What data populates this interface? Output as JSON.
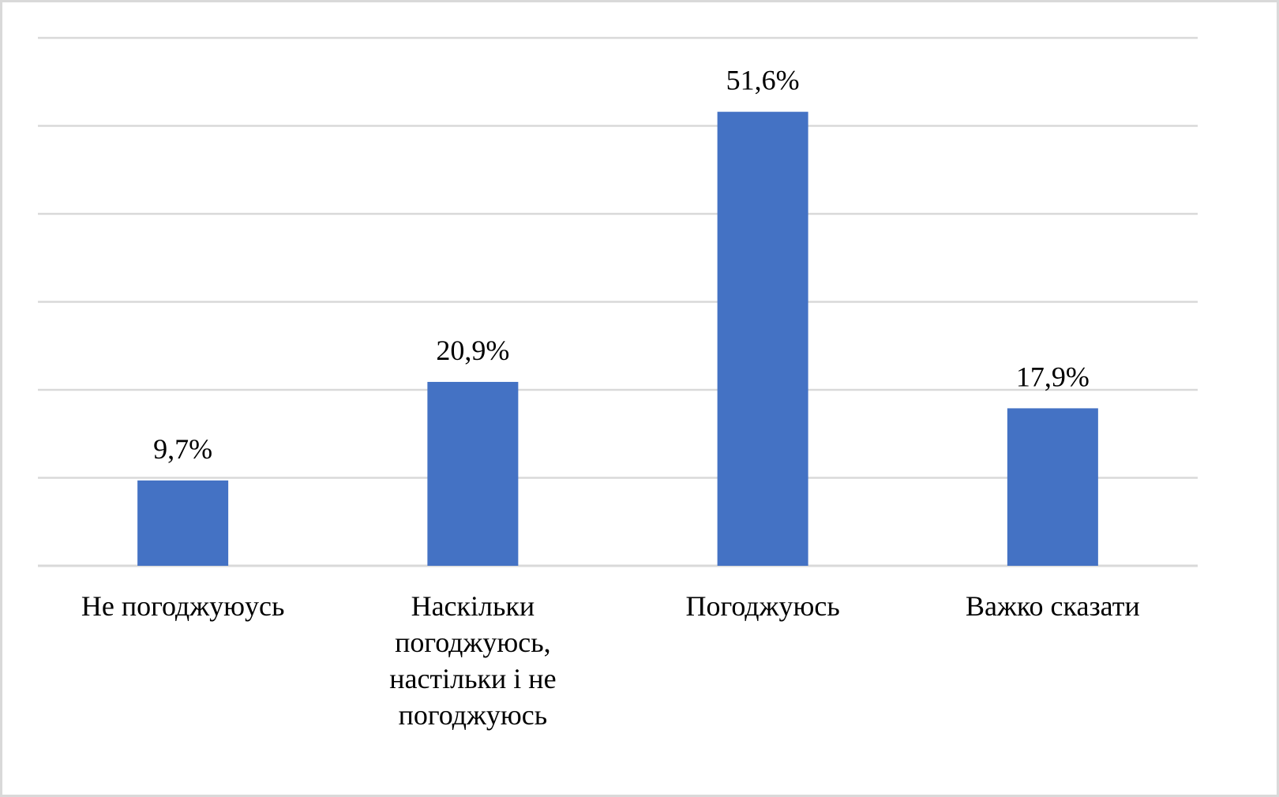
{
  "chart_data": {
    "type": "bar",
    "title": "",
    "xlabel": "",
    "ylabel": "",
    "categories": [
      "Не погоджуюусь",
      "Наскільки погоджуюсь, настільки і не погоджуюсь",
      "Погоджуюсь",
      "Важко сказати"
    ],
    "category_lines": [
      [
        "Не погоджуюусь"
      ],
      [
        "Наскільки",
        "погоджуюсь,",
        "настільки і не",
        "погоджуюсь"
      ],
      [
        "Погоджуюсь"
      ],
      [
        "Важко сказати"
      ]
    ],
    "values": [
      9.7,
      20.9,
      51.6,
      17.9
    ],
    "data_labels": [
      "9,7%",
      "20,9%",
      "51,6%",
      "17,9%"
    ],
    "ylim": [
      0,
      60
    ],
    "y_gridlines": [
      0,
      10,
      20,
      30,
      40,
      50,
      60
    ],
    "y_tick_labels_shown": false,
    "grid": true,
    "legend": "none",
    "colors": {
      "bar": "#4472c4",
      "grid": "#d9d9d9",
      "border": "#d9d9d9",
      "text": "#000000"
    }
  }
}
